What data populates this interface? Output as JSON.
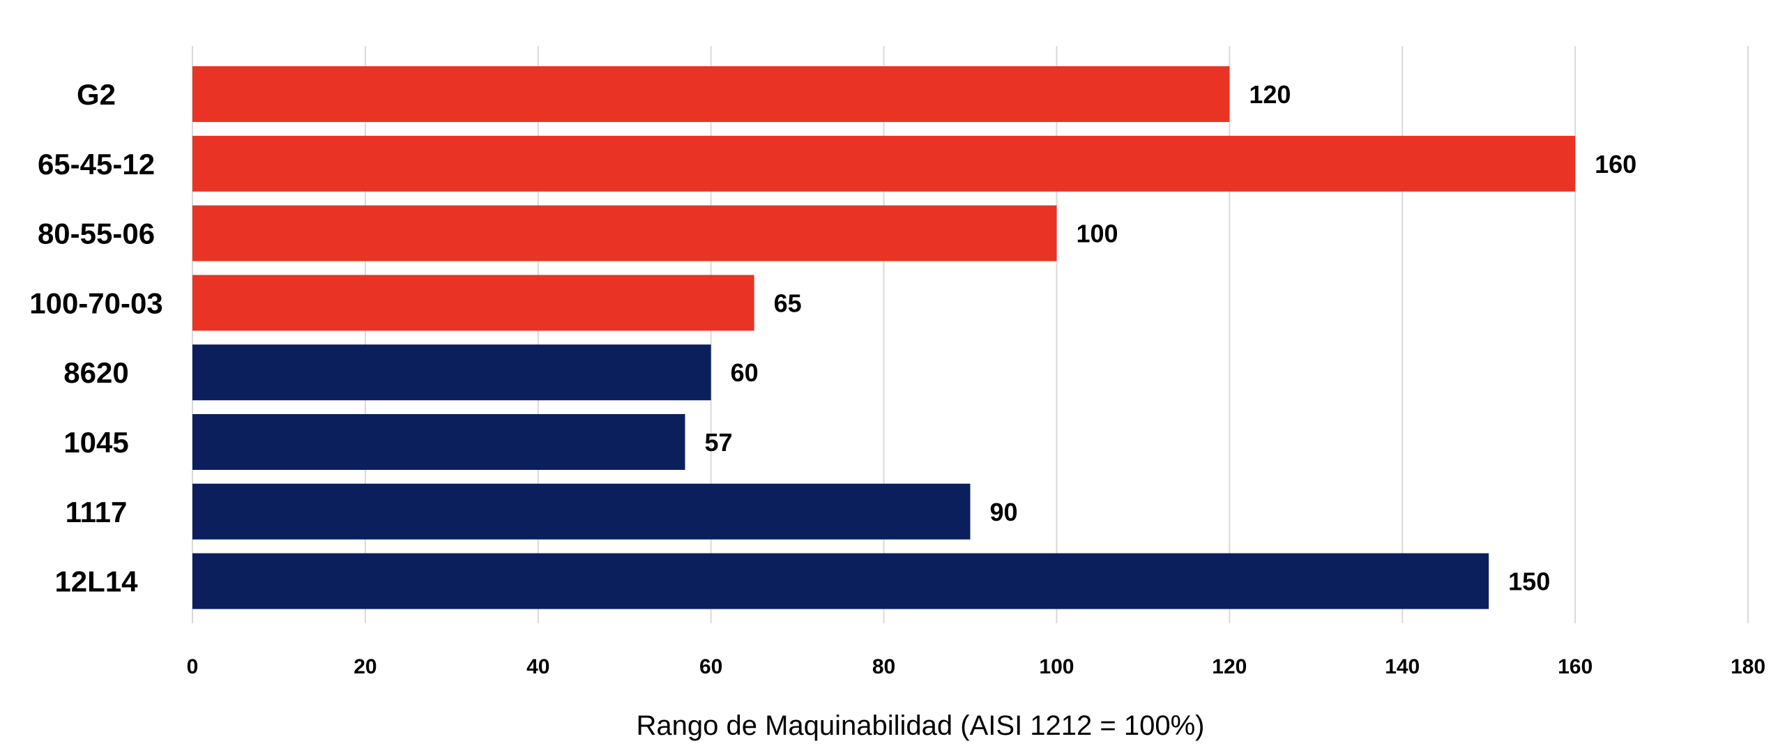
{
  "chart_data": {
    "type": "bar",
    "orientation": "horizontal",
    "categories": [
      "G2",
      "65-45-12",
      "80-55-06",
      "100-70-03",
      "8620",
      "1045",
      "1117",
      "12L14"
    ],
    "values": [
      120,
      160,
      100,
      65,
      60,
      57,
      90,
      150
    ],
    "bar_colors": [
      "#E93425",
      "#E93425",
      "#E93425",
      "#E93425",
      "#0B1F5C",
      "#0B1F5C",
      "#0B1F5C",
      "#0B1F5C"
    ],
    "title": "",
    "xlabel": "Rango de Maquinabilidad (AISI 1212 = 100%)",
    "ylabel": "",
    "xlim": [
      0,
      180
    ],
    "xticks": [
      0,
      20,
      40,
      60,
      80,
      100,
      120,
      140,
      160,
      180
    ],
    "grid": "vertical",
    "data_labels": true,
    "legend": "none"
  }
}
